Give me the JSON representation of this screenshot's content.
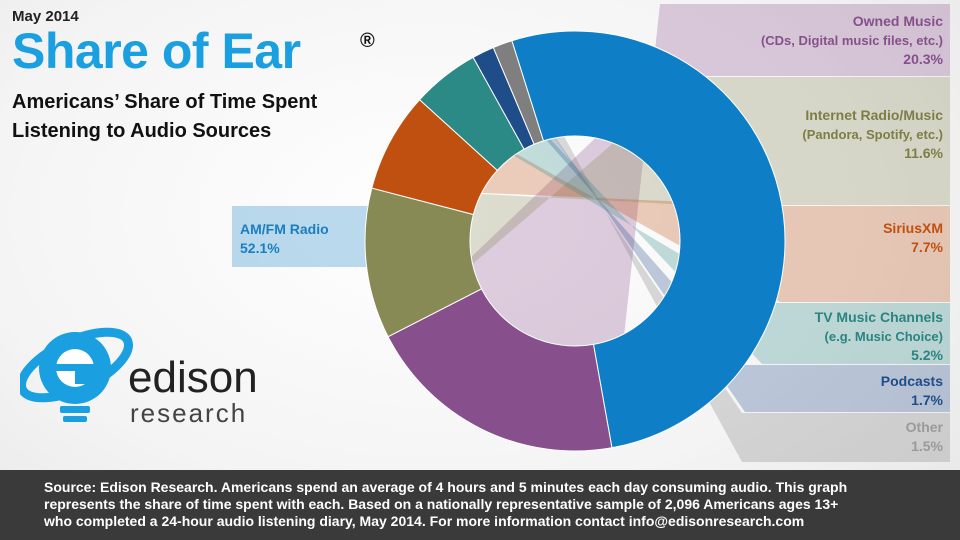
{
  "header": {
    "date": "May 2014",
    "title": "Share of Ear",
    "registered_mark": "®",
    "subtitle_line1": "Americans’ Share of Time Spent",
    "subtitle_line2": "Listening to Audio Sources"
  },
  "logo": {
    "word": "edison",
    "sub": "research"
  },
  "chart_data": {
    "type": "pie",
    "title": "Share of Ear",
    "categories": [
      "AM/FM Radio",
      "Owned Music",
      "Internet Radio/Music",
      "SiriusXM",
      "TV Music Channels",
      "Podcasts",
      "Other"
    ],
    "values": [
      52.1,
      20.3,
      11.6,
      7.7,
      5.2,
      1.7,
      1.5
    ],
    "unit": "%",
    "colors": [
      "#0e7fc6",
      "#874f8c",
      "#888a55",
      "#c0500f",
      "#2b8a86",
      "#1f4d8a",
      "#7f7f7f"
    ],
    "labels": [
      {
        "name": "AM/FM  Radio",
        "sub": "",
        "value": "52.1%"
      },
      {
        "name": "Owned  Music",
        "sub": "(CDs, Digital music files, etc.)",
        "value": "20.3%"
      },
      {
        "name": "Internet Radio/Music",
        "sub": "(Pandora, Spotify, etc.)",
        "value": "11.6%"
      },
      {
        "name": "SiriusXM",
        "sub": "",
        "value": "7.7%"
      },
      {
        "name": "TV Music  Channels",
        "sub": "(e.g. Music Choice)",
        "value": "5.2%"
      },
      {
        "name": "Podcasts",
        "sub": "",
        "value": "1.7%"
      },
      {
        "name": "Other",
        "sub": "",
        "value": "1.5%"
      }
    ]
  },
  "footer": {
    "line1": "Source: Edison Research.  Americans spend an average of 4 hours and 5 minutes each day consuming audio.  This graph",
    "line2": "represents the share of time spent with each.  Based on a nationally representative sample of 2,096 Americans  ages 13+",
    "line3": "who completed a 24-hour audio listening diary, May 2014.  For more information contact info@edisonresearch.com"
  }
}
